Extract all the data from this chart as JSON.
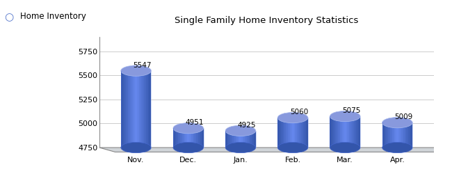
{
  "title": "Single Family Home Inventory Statistics",
  "legend_label": "Home Inventory",
  "categories": [
    "Nov.",
    "Dec.",
    "Jan.",
    "Feb.",
    "Mar.",
    "Apr."
  ],
  "values": [
    5547,
    4951,
    4925,
    5060,
    5075,
    5009
  ],
  "ymin": 4750,
  "ymax": 5900,
  "yticks": [
    4750,
    5000,
    5250,
    5500,
    5750
  ],
  "bar_color_main": "#5577cc",
  "bar_color_light": "#8899dd",
  "bar_color_dark": "#3355aa",
  "bar_color_center": "#6688ee",
  "background_color": "#ffffff",
  "grid_color": "#cccccc",
  "floor_color": "#d0d4d8",
  "wall_hatch_color": "#999999",
  "arrow_color": "#333333"
}
